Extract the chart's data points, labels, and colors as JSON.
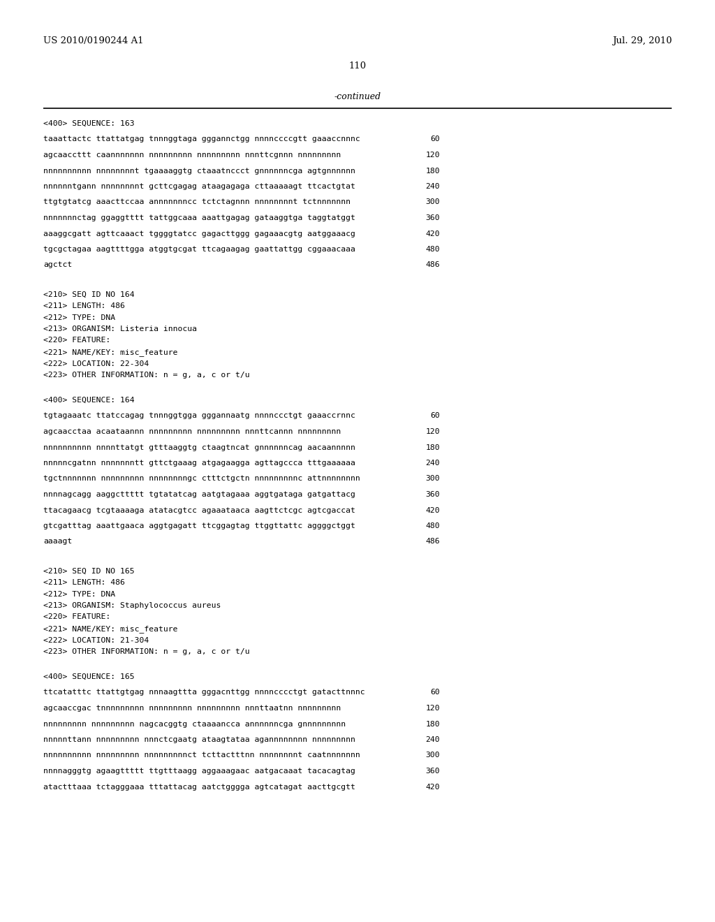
{
  "header_left": "US 2010/0190244 A1",
  "header_right": "Jul. 29, 2010",
  "page_number": "110",
  "continued_text": "-continued",
  "background_color": "#ffffff",
  "text_color": "#000000",
  "content": [
    {
      "type": "seq_header",
      "text": "<400> SEQUENCE: 163"
    },
    {
      "type": "seq_line",
      "text": "taaattactc ttattatgag tnnnggtaga gggannctgg nnnnccccgtt gaaaccnnnc",
      "num": "60"
    },
    {
      "type": "seq_line",
      "text": "agcaaccttt caannnnnnn nnnnnnnnn nnnnnnnnn nnnttcgnnn nnnnnnnnn",
      "num": "120"
    },
    {
      "type": "seq_line",
      "text": "nnnnnnnnnn nnnnnnnnt tgaaaaggtg ctaaatnccct gnnnnnncga agtgnnnnnn",
      "num": "180"
    },
    {
      "type": "seq_line",
      "text": "nnnnnntgann nnnnnnnnt gcttcgagag ataagagaga cttaaaaagt ttcactgtat",
      "num": "240"
    },
    {
      "type": "seq_line",
      "text": "ttgtgtatcg aaacttccaa annnnnnncc tctctagnnn nnnnnnnnt tctnnnnnnn",
      "num": "300"
    },
    {
      "type": "seq_line",
      "text": "nnnnnnnctag ggaggtttt tattggcaaa aaattgagag gataaggtga taggtatggt",
      "num": "360"
    },
    {
      "type": "seq_line",
      "text": "aaaggcgatt agttcaaact tggggtatcc gagacttggg gagaaacgtg aatggaaacg",
      "num": "420"
    },
    {
      "type": "seq_line",
      "text": "tgcgctagaa aagttttgga atggtgcgat ttcagaagag gaattattgg cggaaacaaa",
      "num": "480"
    },
    {
      "type": "seq_line",
      "text": "agctct",
      "num": "486"
    },
    {
      "type": "blank"
    },
    {
      "type": "meta",
      "text": "<210> SEQ ID NO 164"
    },
    {
      "type": "meta",
      "text": "<211> LENGTH: 486"
    },
    {
      "type": "meta",
      "text": "<212> TYPE: DNA"
    },
    {
      "type": "meta",
      "text": "<213> ORGANISM: Listeria innocua"
    },
    {
      "type": "meta",
      "text": "<220> FEATURE:"
    },
    {
      "type": "meta",
      "text": "<221> NAME/KEY: misc_feature"
    },
    {
      "type": "meta",
      "text": "<222> LOCATION: 22-304"
    },
    {
      "type": "meta",
      "text": "<223> OTHER INFORMATION: n = g, a, c or t/u"
    },
    {
      "type": "blank"
    },
    {
      "type": "seq_header",
      "text": "<400> SEQUENCE: 164"
    },
    {
      "type": "seq_line",
      "text": "tgtagaaatc ttatccagag tnnnggtgga gggannaatg nnnnccctgt gaaaccrnnc",
      "num": "60"
    },
    {
      "type": "seq_line",
      "text": "agcaacctaa acaataannn nnnnnnnnn nnnnnnnnn nnnttcannn nnnnnnnnn",
      "num": "120"
    },
    {
      "type": "seq_line",
      "text": "nnnnnnnnnn nnnnttatgt gtttaaggtg ctaagtncat gnnnnnncag aacaannnnn",
      "num": "180"
    },
    {
      "type": "seq_line",
      "text": "nnnnncgatnn nnnnnnntt gttctgaaag atgagaagga agttagccca tttgaaaaaa",
      "num": "240"
    },
    {
      "type": "seq_line",
      "text": "tgctnnnnnnn nnnnnnnnn nnnnnnnngc ctttctgctn nnnnnnnnnc attnnnnnnnn",
      "num": "300"
    },
    {
      "type": "seq_line",
      "text": "nnnnagcagg aaggcttttt tgtatatcag aatgtagaaa aggtgataga gatgattacg",
      "num": "360"
    },
    {
      "type": "seq_line",
      "text": "ttacagaacg tcgtaaaaga atatacgtcc agaaataaca aagttctcgc agtcgaccat",
      "num": "420"
    },
    {
      "type": "seq_line",
      "text": "gtcgatttag aaattgaaca aggtgagatt ttcggagtag ttggttattc aggggctggt",
      "num": "480"
    },
    {
      "type": "seq_line",
      "text": "aaaagt",
      "num": "486"
    },
    {
      "type": "blank"
    },
    {
      "type": "meta",
      "text": "<210> SEQ ID NO 165"
    },
    {
      "type": "meta",
      "text": "<211> LENGTH: 486"
    },
    {
      "type": "meta",
      "text": "<212> TYPE: DNA"
    },
    {
      "type": "meta",
      "text": "<213> ORGANISM: Staphylococcus aureus"
    },
    {
      "type": "meta",
      "text": "<220> FEATURE:"
    },
    {
      "type": "meta",
      "text": "<221> NAME/KEY: misc_feature"
    },
    {
      "type": "meta",
      "text": "<222> LOCATION: 21-304"
    },
    {
      "type": "meta",
      "text": "<223> OTHER INFORMATION: n = g, a, c or t/u"
    },
    {
      "type": "blank"
    },
    {
      "type": "seq_header",
      "text": "<400> SEQUENCE: 165"
    },
    {
      "type": "seq_line",
      "text": "ttcatatttc ttattgtgag nnnaagttta gggacnttgg nnnncccctgt gatacttnnnc",
      "num": "60"
    },
    {
      "type": "seq_line",
      "text": "agcaaccgac tnnnnnnnnn nnnnnnnnn nnnnnnnnn nnnttaatnn nnnnnnnnn",
      "num": "120"
    },
    {
      "type": "seq_line",
      "text": "nnnnnnnnn nnnnnnnnn nagcacggtg ctaaaancca annnnnncga gnnnnnnnnn",
      "num": "180"
    },
    {
      "type": "seq_line",
      "text": "nnnnnttann nnnnnnnnn nnnctcgaatg ataagtataa agannnnnnnn nnnnnnnnn",
      "num": "240"
    },
    {
      "type": "seq_line",
      "text": "nnnnnnnnnn nnnnnnnnn nnnnnnnnnct tcttactttnn nnnnnnnnt caatnnnnnnn",
      "num": "300"
    },
    {
      "type": "seq_line",
      "text": "nnnnagggtg agaagttttt ttgtttaagg aggaaagaac aatgacaaat tacacagtag",
      "num": "360"
    },
    {
      "type": "seq_line",
      "text": "atactttaaa tctagggaaa tttattacag aatctgggga agtcatagat aacttgcgtt",
      "num": "420"
    }
  ]
}
